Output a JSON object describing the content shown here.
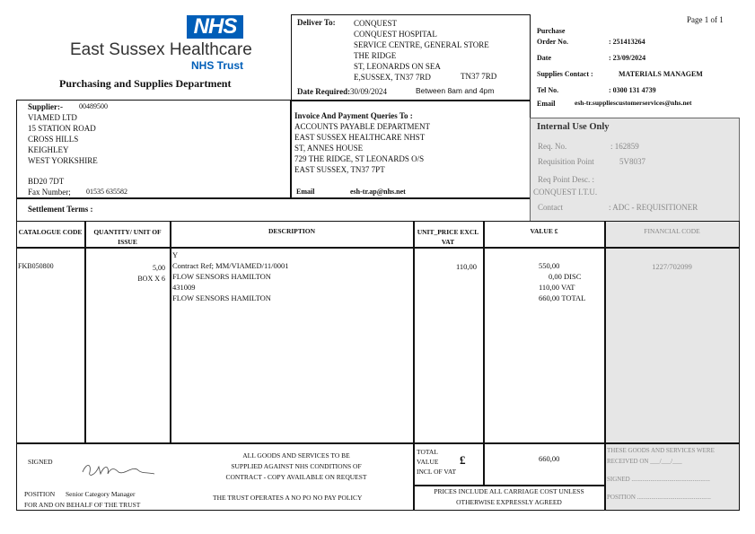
{
  "header": {
    "logo_text": "NHS",
    "org_name": "East Sussex Healthcare",
    "org_sub": "NHS Trust",
    "department": "Purchasing and Supplies Department",
    "brand_color": "#005eb8",
    "page": "Page 1 of 1"
  },
  "deliver": {
    "label": "Deliver To:",
    "lines": [
      "CONQUEST",
      "CONQUEST HOSPITAL",
      "SERVICE CENTRE,  GENERAL STORE",
      "THE RIDGE",
      "ST, LEONARDS ON SEA",
      "E,SUSSEX, TN37 7RD"
    ],
    "postcode": "TN37 7RD",
    "date_label": "Date Required:",
    "date": "30/09/2024",
    "time": "Between 8am and 4pm"
  },
  "order": {
    "purchase_label": "Purchase",
    "order_label": "Order No.",
    "order_no": ": 251413264",
    "date_label": "Date",
    "date": ": 23/09/2024",
    "contact_label": "Supplies Contact :",
    "contact": "MATERIALS MANAGEM",
    "tel_label": "Tel No.",
    "tel": ": 0300 131 4739",
    "email_label": "Email",
    "email": "esh-tr.suppliescustomerservices@nhs.net"
  },
  "supplier": {
    "label": "Supplier:-",
    "code": "00489500",
    "lines": [
      "VIAMED LTD",
      "15 STATION ROAD",
      "CROSS HILLS",
      "KEIGHLEY",
      "WEST YORKSHIRE"
    ],
    "postcode": "BD20 7DT",
    "fax_label": "Fax Number;",
    "fax": "01535 635582",
    "settlement_label": "Settlement Terms :"
  },
  "invoice": {
    "label": "Invoice And Payment Queries To :",
    "lines": [
      "ACCOUNTS PAYABLE DEPARTMENT",
      "EAST SUSSEX HEALTHCARE NHST",
      "ST, ANNES HOUSE",
      "729 THE RIDGE, ST LEONARDS O/S",
      "EAST SUSSEX, TN37 7PT"
    ],
    "email_label": "Email",
    "email": "esh-tr.ap@nhs.net"
  },
  "internal": {
    "title": "Internal Use Only",
    "req_no_label": "Req. No.",
    "req_no": ":  162859",
    "req_point_label": "Requisition Point",
    "req_point": "5V8037",
    "req_desc_label": "Req Point Desc.   :",
    "req_desc": "CONQUEST I.T.U.",
    "contact_label": "Contact",
    "contact": ":  ADC - REQUISITIONER"
  },
  "table": {
    "headers": [
      "CATALOGUE CODE",
      "QUANTITY/ UNIT OF ISSUE",
      "DESCRIPTION",
      "UNIT_PRICE EXCL VAT",
      "VALUE £",
      "FINANCIAL CODE"
    ],
    "row": {
      "code": "FKB050800",
      "qty": "5,00",
      "unit": "BOX X 6",
      "description": [
        "Y",
        "Contract Ref; MM/VIAMED/11/0001",
        "FLOW SENSORS HAMILTON",
        "431009",
        "FLOW SENSORS HAMILTON"
      ],
      "unit_price": "110,00",
      "values": [
        "550,00",
        "0,00 DISC",
        "110,00  VAT",
        "660,00  TOTAL"
      ],
      "financial_code": "1227/702099"
    }
  },
  "footer": {
    "signed_label": "SIGNED",
    "position_label": "POSITION",
    "position": "Senior Category Manager",
    "behalf": "FOR AND ON BEHALF OF THE TRUST",
    "terms": [
      "ALL GOODS AND SERVICES TO BE",
      "SUPPLIED AGAINST NHS CONDITIONS OF",
      "CONTRACT - COPY AVAILABLE ON REQUEST"
    ],
    "policy": "THE TRUST OPERATES A NO PO NO PAY POLICY",
    "total_label": [
      "TOTAL",
      "VALUE",
      "INCL OF VAT"
    ],
    "currency": "£",
    "total": "660,00",
    "prices": [
      "PRICES INCLUDE ALL CARRIAGE COST UNLESS",
      "OTHERWISE EXPRESSLY AGREED"
    ],
    "received": [
      "THESE GOODS AND SERVICES WERE",
      "RECEIVED ON  ___/___/___"
    ],
    "signed_line": "SIGNED ..................................................",
    "position_line": "POSITION ..............................................."
  }
}
